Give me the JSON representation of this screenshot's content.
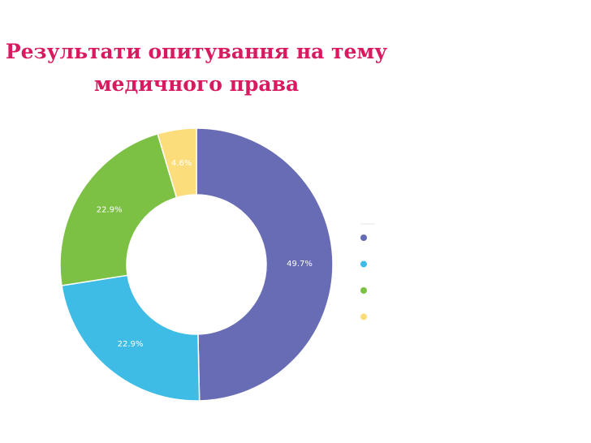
{
  "chart_data": {
    "type": "pie",
    "title_lines": [
      "Результати опитування на тему",
      "медичного права"
    ],
    "categories": [
      "",
      "",
      "",
      ""
    ],
    "values": [
      49.7,
      22.9,
      22.9,
      4.6
    ],
    "labels": [
      "49.7%",
      "22.9%",
      "22.9%",
      "4.6%"
    ],
    "colors": [
      "#676cb4",
      "#3fbce6",
      "#7cc044",
      "#fcdd7c"
    ],
    "donut": true,
    "legend": "right"
  }
}
